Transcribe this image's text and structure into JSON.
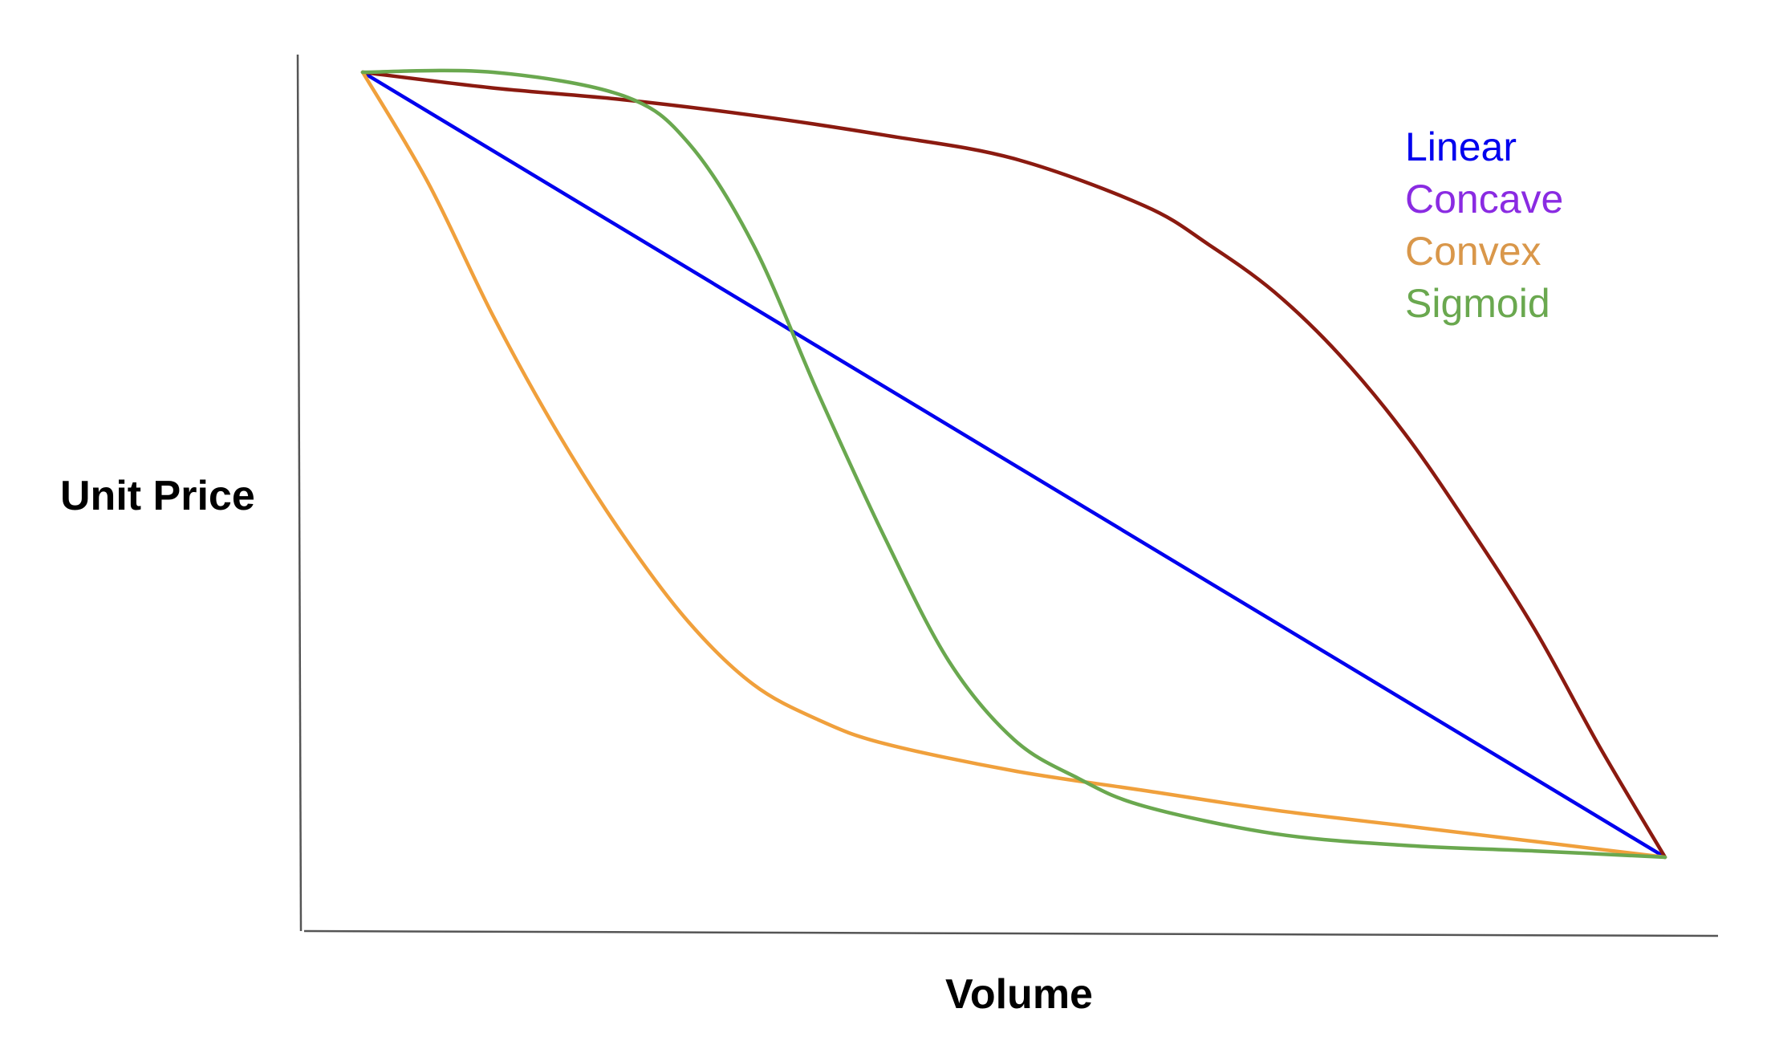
{
  "chart_data": {
    "type": "line",
    "title": "",
    "xlabel": "Volume",
    "ylabel": "Unit Price",
    "grid": false,
    "ticks": false,
    "legend_placement": "top-right",
    "legend": [
      {
        "label": "Linear",
        "color": "#0000ee"
      },
      {
        "label": "Concave",
        "color": "#8a2be2"
      },
      {
        "label": "Convex",
        "color": "#d9974a"
      },
      {
        "label": "Sigmoid",
        "color": "#6aa84f"
      }
    ],
    "xlim": [
      0,
      1
    ],
    "ylim": [
      0,
      1
    ],
    "series": [
      {
        "color": "#0000ee",
        "x": [
          0.0,
          1.0
        ],
        "y": [
          1.0,
          0.0
        ]
      },
      {
        "color": "#8b1a10",
        "x": [
          0.0,
          0.1,
          0.2,
          0.3,
          0.4,
          0.5,
          0.6,
          0.65,
          0.7,
          0.75,
          0.8,
          0.85,
          0.9,
          0.95,
          1.0
        ],
        "y": [
          1.0,
          0.98,
          0.965,
          0.945,
          0.92,
          0.89,
          0.83,
          0.78,
          0.72,
          0.64,
          0.54,
          0.42,
          0.29,
          0.14,
          0.0
        ]
      },
      {
        "color": "#f0a03c",
        "x": [
          0.0,
          0.05,
          0.1,
          0.15,
          0.2,
          0.25,
          0.3,
          0.35,
          0.4,
          0.5,
          0.6,
          0.7,
          0.8,
          0.9,
          1.0
        ],
        "y": [
          1.0,
          0.86,
          0.69,
          0.54,
          0.41,
          0.3,
          0.22,
          0.175,
          0.145,
          0.11,
          0.085,
          0.06,
          0.04,
          0.02,
          0.0
        ]
      },
      {
        "color": "#6aa84f",
        "x": [
          0.0,
          0.1,
          0.2,
          0.25,
          0.3,
          0.35,
          0.4,
          0.45,
          0.5,
          0.55,
          0.6,
          0.7,
          0.8,
          0.9,
          1.0
        ],
        "y": [
          1.0,
          1.0,
          0.97,
          0.91,
          0.78,
          0.59,
          0.41,
          0.25,
          0.15,
          0.1,
          0.065,
          0.03,
          0.015,
          0.008,
          0.0
        ]
      }
    ]
  }
}
